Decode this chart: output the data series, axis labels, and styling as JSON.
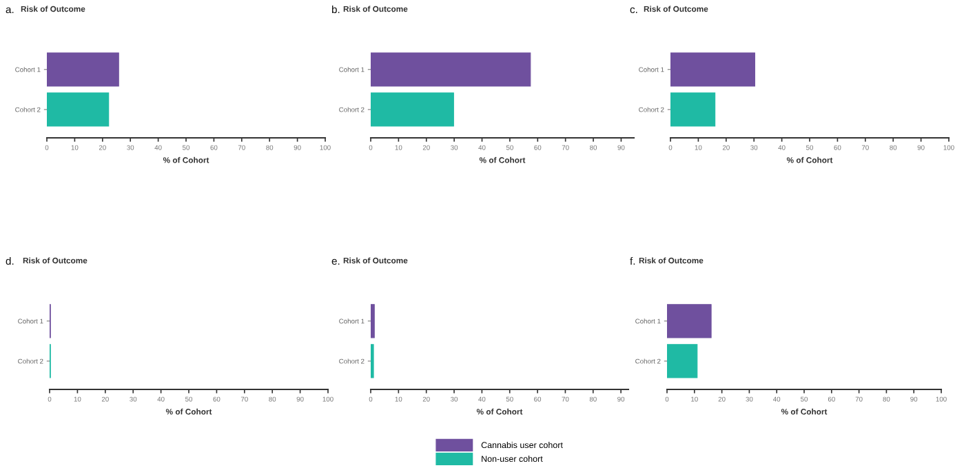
{
  "chart_data": [
    {
      "type": "bar",
      "orientation": "horizontal",
      "title": "Risk of Outcome",
      "annotations": [
        "a."
      ],
      "xlabel": "% of Cohort",
      "categories": [
        "Cohort 1",
        "Cohort 2"
      ],
      "series": [
        {
          "color": "#6f509e",
          "values": [
            25.8,
            null
          ]
        },
        {
          "color": "#1fbaa4",
          "values": [
            null,
            22.2
          ]
        }
      ],
      "xlim": [
        0,
        100
      ],
      "xticks": [
        0,
        10,
        20,
        30,
        40,
        50,
        60,
        70,
        80,
        90,
        100
      ],
      "grid": false,
      "legend": false
    },
    {
      "type": "bar",
      "orientation": "horizontal",
      "title": "Risk of Outcome",
      "annotations": [
        "b."
      ],
      "xlabel": "% of Cohort",
      "categories": [
        "Cohort 1",
        "Cohort 2"
      ],
      "series": [
        {
          "color": "#6f509e",
          "values": [
            57.4,
            null
          ]
        },
        {
          "color": "#1fbaa4",
          "values": [
            null,
            29.8
          ]
        }
      ],
      "xlim": [
        0,
        94.6
      ],
      "xticks": [
        0,
        10,
        20,
        30,
        40,
        50,
        60,
        70,
        80,
        90
      ],
      "grid": false,
      "legend": false
    },
    {
      "type": "bar",
      "orientation": "horizontal",
      "title": "Risk of Outcome",
      "annotations": [
        "c."
      ],
      "xlabel": "% of Cohort",
      "categories": [
        "Cohort 1",
        "Cohort 2"
      ],
      "series": [
        {
          "color": "#6f509e",
          "values": [
            30.3,
            null
          ]
        },
        {
          "color": "#1fbaa4",
          "values": [
            null,
            16.0
          ]
        }
      ],
      "xlim": [
        0,
        100
      ],
      "xticks": [
        0,
        10,
        20,
        30,
        40,
        50,
        60,
        70,
        80,
        90,
        100
      ],
      "grid": false,
      "legend": false
    },
    {
      "type": "bar",
      "orientation": "horizontal",
      "title": "Risk of Outcome",
      "annotations": [
        "d."
      ],
      "xlabel": "% of Cohort",
      "categories": [
        "Cohort 1",
        "Cohort 2"
      ],
      "series": [
        {
          "color": "#6f509e",
          "values": [
            0.3,
            null
          ]
        },
        {
          "color": "#1fbaa4",
          "values": [
            null,
            0.3
          ]
        }
      ],
      "xlim": [
        0,
        100
      ],
      "xticks": [
        0,
        10,
        20,
        30,
        40,
        50,
        60,
        70,
        80,
        90,
        100
      ],
      "grid": false,
      "legend": false
    },
    {
      "type": "bar",
      "orientation": "horizontal",
      "title": "Risk of Outcome",
      "annotations": [
        "e."
      ],
      "xlabel": "% of Cohort",
      "categories": [
        "Cohort 1",
        "Cohort 2"
      ],
      "series": [
        {
          "name": "Cannabis user cohort",
          "color": "#6f509e",
          "values": [
            1.3,
            null
          ]
        },
        {
          "name": "Non-user cohort",
          "color": "#1fbaa4",
          "values": [
            null,
            1.0
          ]
        }
      ],
      "xlim": [
        0,
        92.7
      ],
      "xticks": [
        0,
        10,
        20,
        30,
        40,
        50,
        60,
        70,
        80,
        90
      ],
      "grid": false,
      "legend": "bottom"
    },
    {
      "type": "bar",
      "orientation": "horizontal",
      "title": "Risk of Outcome",
      "annotations": [
        "f."
      ],
      "xlabel": "% of Cohort",
      "categories": [
        "Cohort 1",
        "Cohort 2"
      ],
      "series": [
        {
          "color": "#6f509e",
          "values": [
            16.1,
            null
          ]
        },
        {
          "color": "#1fbaa4",
          "values": [
            null,
            11.0
          ]
        }
      ],
      "xlim": [
        0,
        100
      ],
      "xticks": [
        0,
        10,
        20,
        30,
        40,
        50,
        60,
        70,
        80,
        90,
        100
      ],
      "grid": false,
      "legend": false
    }
  ]
}
